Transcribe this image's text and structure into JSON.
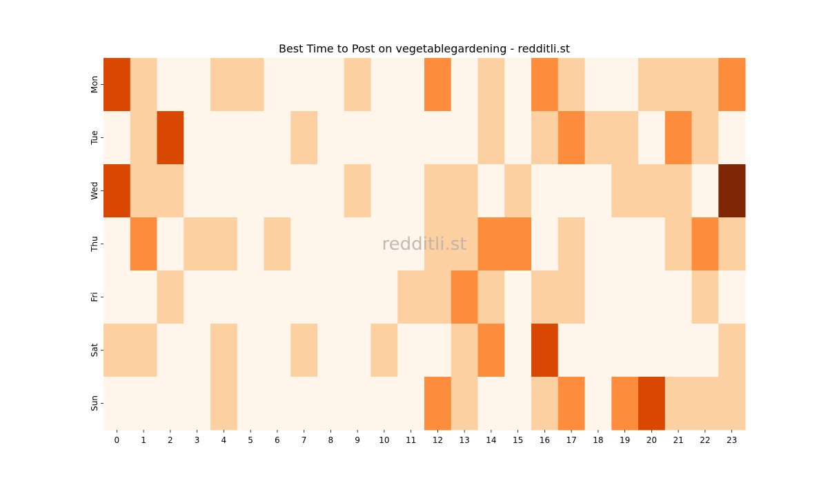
{
  "chart_data": {
    "type": "heatmap",
    "title": "Best Time to Post on vegetablegardening - redditli.st",
    "watermark": "redditli.st",
    "x_categories": [
      "0",
      "1",
      "2",
      "3",
      "4",
      "5",
      "6",
      "7",
      "8",
      "9",
      "10",
      "11",
      "12",
      "13",
      "14",
      "15",
      "16",
      "17",
      "18",
      "19",
      "20",
      "21",
      "22",
      "23"
    ],
    "y_categories": [
      "Mon",
      "Tue",
      "Wed",
      "Thu",
      "Fri",
      "Sat",
      "Sun"
    ],
    "values": [
      [
        3,
        1,
        0,
        0,
        1,
        1,
        0,
        0,
        0,
        1,
        0,
        0,
        2,
        0,
        1,
        0,
        2,
        1,
        0,
        0,
        1,
        1,
        1,
        2
      ],
      [
        0,
        1,
        3,
        0,
        0,
        0,
        0,
        1,
        0,
        0,
        0,
        0,
        0,
        0,
        1,
        0,
        1,
        2,
        1,
        1,
        0,
        2,
        1,
        0
      ],
      [
        3,
        1,
        1,
        0,
        0,
        0,
        0,
        0,
        0,
        1,
        0,
        0,
        1,
        1,
        0,
        1,
        0,
        0,
        0,
        1,
        1,
        1,
        0,
        4
      ],
      [
        0,
        2,
        0,
        1,
        1,
        0,
        1,
        0,
        0,
        0,
        0,
        0,
        1,
        1,
        2,
        2,
        0,
        1,
        0,
        0,
        0,
        1,
        2,
        1
      ],
      [
        0,
        0,
        1,
        0,
        0,
        0,
        0,
        0,
        0,
        0,
        0,
        1,
        1,
        2,
        1,
        0,
        1,
        1,
        0,
        0,
        0,
        0,
        1,
        0
      ],
      [
        1,
        1,
        0,
        0,
        1,
        0,
        0,
        1,
        0,
        0,
        1,
        0,
        0,
        1,
        2,
        0,
        3,
        0,
        0,
        0,
        0,
        0,
        0,
        1
      ],
      [
        0,
        0,
        0,
        0,
        1,
        0,
        0,
        0,
        0,
        0,
        0,
        0,
        2,
        1,
        0,
        0,
        1,
        2,
        0,
        2,
        3,
        1,
        1,
        1
      ]
    ],
    "vmin": 0,
    "vmax": 4,
    "colormap": [
      "#fff5eb",
      "#fdd0a2",
      "#fd8d3c",
      "#d94801",
      "#7f2704"
    ],
    "colorbar": false
  }
}
